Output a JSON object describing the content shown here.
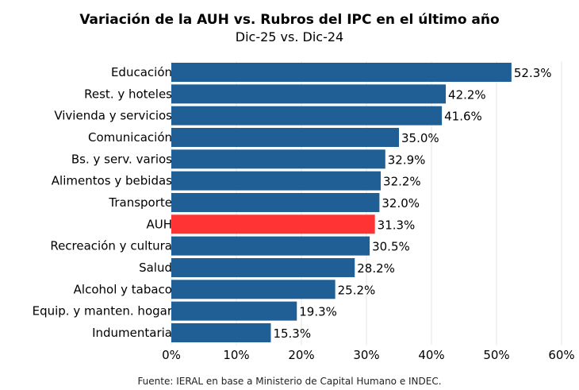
{
  "chart_data": {
    "type": "bar",
    "orientation": "horizontal",
    "title": "Variación de la AUH vs. Rubros del IPC en el último año",
    "subtitle": "Dic-25 vs. Dic-24",
    "source": "Fuente: IERAL en base a Ministerio de Capital Humano e INDEC.",
    "categories": [
      "Educación",
      "Rest. y hoteles",
      "Vivienda y servicios",
      "Comunicación",
      "Bs. y serv. varios",
      "Alimentos y bebidas",
      "Transporte",
      "AUH",
      "Recreación y cultura",
      "Salud",
      "Alcohol y tabaco",
      "Equip. y manten. hogar",
      "Indumentaria"
    ],
    "values": [
      52.3,
      42.2,
      41.6,
      35.0,
      32.9,
      32.2,
      32.0,
      31.3,
      30.5,
      28.2,
      25.2,
      19.3,
      15.3
    ],
    "data_labels": [
      "52.3%",
      "42.2%",
      "41.6%",
      "35.0%",
      "32.9%",
      "32.2%",
      "32.0%",
      "31.3%",
      "30.5%",
      "28.2%",
      "25.2%",
      "19.3%",
      "15.3%"
    ],
    "highlight": "AUH",
    "xlim": [
      0,
      60
    ],
    "xticks": [
      0,
      10,
      20,
      30,
      40,
      50,
      60
    ],
    "xtick_labels": [
      "0%",
      "10%",
      "20%",
      "30%",
      "40%",
      "50%",
      "60%"
    ],
    "grid": "vertical",
    "colors": {
      "bar": "#1F5F95",
      "highlight": "#FF3333",
      "grid": "#E6E6E6"
    }
  }
}
